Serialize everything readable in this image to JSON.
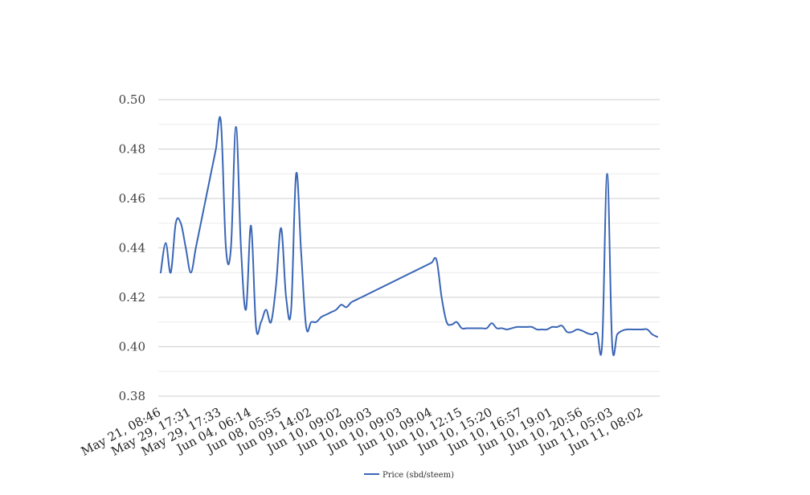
{
  "chart_data": {
    "type": "line",
    "title": "",
    "xlabel": "",
    "ylabel": "",
    "ylim": [
      0.38,
      0.5
    ],
    "y_ticks": [
      "0.38",
      "0.40",
      "0.42",
      "0.44",
      "0.46",
      "0.48",
      "0.50"
    ],
    "y_tick_values": [
      0.38,
      0.4,
      0.42,
      0.44,
      0.46,
      0.48,
      0.5
    ],
    "y_minor_grid": [
      0.39,
      0.41,
      0.43,
      0.45,
      0.47,
      0.49
    ],
    "grid": true,
    "legend_position": "bottom-center",
    "x_tick_labels": [
      "May 21, 08:46",
      "May 29, 17:31",
      "May 29, 17:33",
      "Jun 04, 06:14",
      "Jun 08, 05:55",
      "Jun 09, 14:02",
      "Jun 10, 09:02",
      "Jun 10, 09:03",
      "Jun 10, 09:03",
      "Jun 10, 09:04",
      "Jun 10, 12:15",
      "Jun 10, 15:20",
      "Jun 10, 16:57",
      "Jun 10, 19:01",
      "Jun 10, 20:56",
      "Jun 11, 05:03",
      "Jun 11, 08:02"
    ],
    "series": [
      {
        "name": "Price (sbd/steem)",
        "color": "#3a66b6",
        "values": [
          0.43,
          0.442,
          0.43,
          0.45,
          0.45,
          0.44,
          0.43,
          0.44,
          0.45,
          0.46,
          0.47,
          0.48,
          0.491,
          0.44,
          0.44,
          0.489,
          0.44,
          0.415,
          0.449,
          0.408,
          0.41,
          0.415,
          0.41,
          0.425,
          0.448,
          0.42,
          0.415,
          0.47,
          0.438,
          0.408,
          0.41,
          0.41,
          0.412,
          0.413,
          0.414,
          0.415,
          0.417,
          0.416,
          0.418,
          0.419,
          0.42,
          0.421,
          0.422,
          0.423,
          0.424,
          0.425,
          0.426,
          0.427,
          0.428,
          0.429,
          0.43,
          0.431,
          0.432,
          0.433,
          0.434,
          0.435,
          0.42,
          0.41,
          0.409,
          0.41,
          0.4075,
          0.4075,
          0.4075,
          0.4075,
          0.4075,
          0.4075,
          0.4095,
          0.4075,
          0.4075,
          0.407,
          0.4075,
          0.408,
          0.408,
          0.408,
          0.408,
          0.407,
          0.407,
          0.407,
          0.408,
          0.408,
          0.4085,
          0.406,
          0.406,
          0.407,
          0.4065,
          0.4055,
          0.405,
          0.4055,
          0.401,
          0.47,
          0.401,
          0.405,
          0.4065,
          0.407,
          0.407,
          0.407,
          0.407,
          0.407,
          0.405,
          0.404
        ]
      }
    ]
  }
}
